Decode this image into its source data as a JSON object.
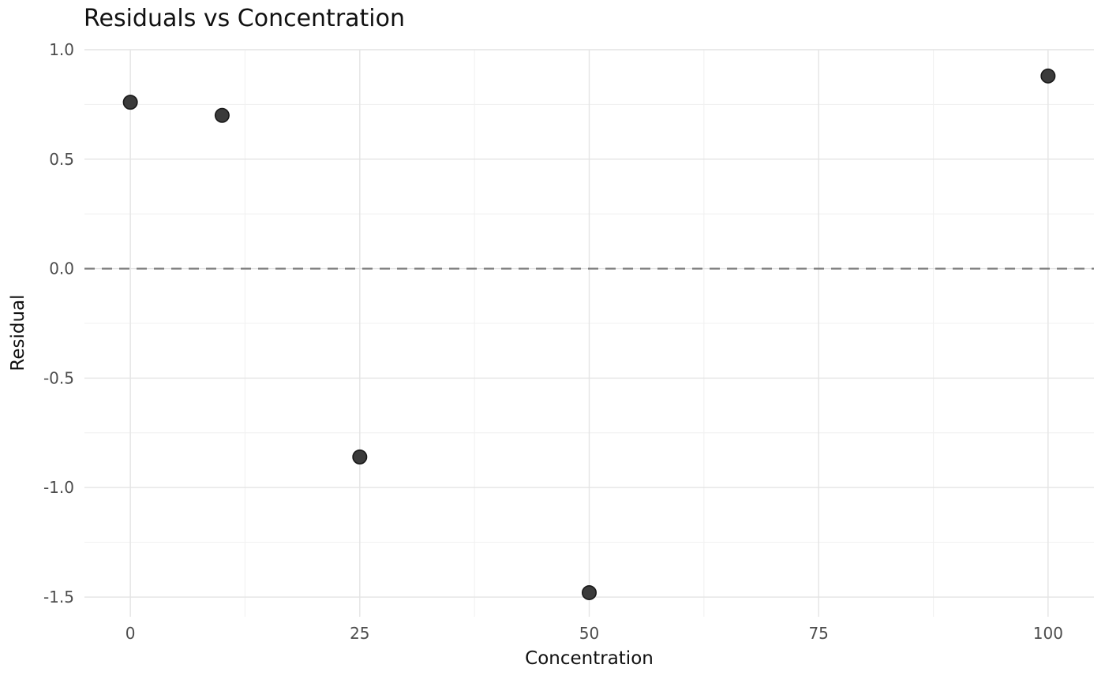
{
  "chart_data": {
    "type": "scatter",
    "title": "Residuals vs Concentration",
    "xlabel": "Concentration",
    "ylabel": "Residual",
    "x": [
      0,
      10,
      25,
      50,
      100
    ],
    "y": [
      0.76,
      0.7,
      -0.86,
      -1.48,
      0.88
    ],
    "points": [
      {
        "x": 0,
        "y": 0.76
      },
      {
        "x": 10,
        "y": 0.7
      },
      {
        "x": 25,
        "y": -0.86
      },
      {
        "x": 50,
        "y": -1.48
      },
      {
        "x": 100,
        "y": 0.88
      }
    ],
    "x_ticks": [
      0,
      25,
      50,
      75,
      100
    ],
    "x_tick_labels": [
      "0",
      "25",
      "50",
      "75",
      "100"
    ],
    "y_ticks": [
      1.0,
      0.5,
      0.0,
      -0.5,
      -1.0,
      -1.5
    ],
    "y_tick_labels": [
      "1.0",
      "0.5",
      "0.0",
      "-0.5",
      "-1.0",
      "-1.5"
    ],
    "x_minor_ticks": [
      12.5,
      37.5,
      62.5,
      87.5
    ],
    "y_minor_ticks": [
      0.75,
      0.25,
      -0.25,
      -0.75,
      -1.25
    ],
    "xlim": [
      -5,
      105
    ],
    "ylim": [
      -1.59,
      1.0
    ],
    "grid": "major+minor",
    "legend": false,
    "reference_line": {
      "y": 0.0,
      "style": "dashed"
    },
    "colors": {
      "background": "#ffffff",
      "grid_major": "#e4e4e4",
      "grid_minor": "#f1f1f1",
      "reference_line": "#7f7f7f",
      "point_fill": "#3b3b3b",
      "point_edge": "#191919",
      "tick_label": "#4d4d4d",
      "text": "#111111"
    }
  }
}
